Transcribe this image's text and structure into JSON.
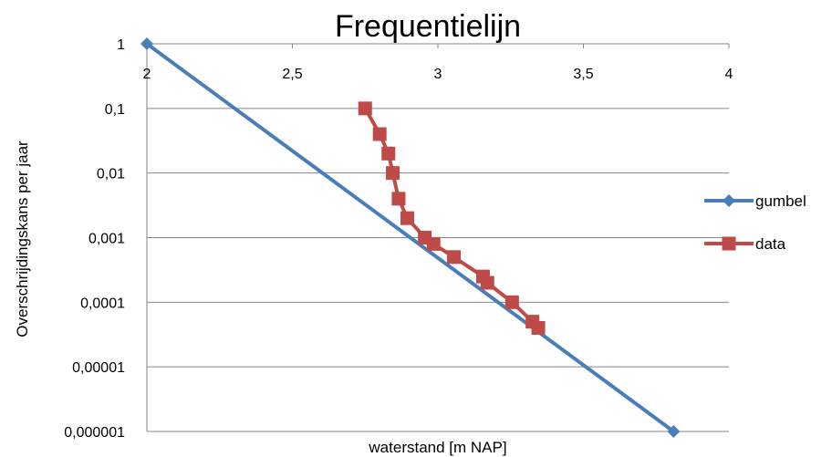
{
  "chart_data": {
    "type": "line",
    "title": "Frequentielijn",
    "xlabel": "waterstand [m NAP]",
    "ylabel": "Overschrijdingskans per jaar",
    "xlim": [
      2,
      4
    ],
    "ylim": [
      1e-06,
      1
    ],
    "y_scale": "log",
    "x_ticks": [
      "2",
      "2,5",
      "3",
      "3,5",
      "4"
    ],
    "x_tick_values": [
      2,
      2.5,
      3,
      3.5,
      4
    ],
    "y_ticks": [
      "1",
      "0,1",
      "0,01",
      "0,001",
      "0,0001",
      "0,00001",
      "0,000001"
    ],
    "y_tick_values": [
      1,
      0.1,
      0.01,
      0.001,
      0.0001,
      1e-05,
      1e-06
    ],
    "grid": true,
    "legend_position": "right",
    "series": [
      {
        "name": "gumbel",
        "color": "#4a7ebb",
        "marker": "diamond",
        "x": [
          2.0,
          3.81
        ],
        "y": [
          1,
          1e-06
        ]
      },
      {
        "name": "data",
        "color": "#be4b48",
        "marker": "square",
        "x": [
          2.75,
          2.8,
          2.83,
          2.845,
          2.865,
          2.895,
          2.955,
          2.985,
          3.055,
          3.155,
          3.17,
          3.255,
          3.325,
          3.345
        ],
        "y": [
          0.1,
          0.04,
          0.02,
          0.01,
          0.004,
          0.002,
          0.001,
          0.0008,
          0.0005,
          0.00025,
          0.0002,
          0.0001,
          5e-05,
          4e-05
        ]
      }
    ]
  }
}
